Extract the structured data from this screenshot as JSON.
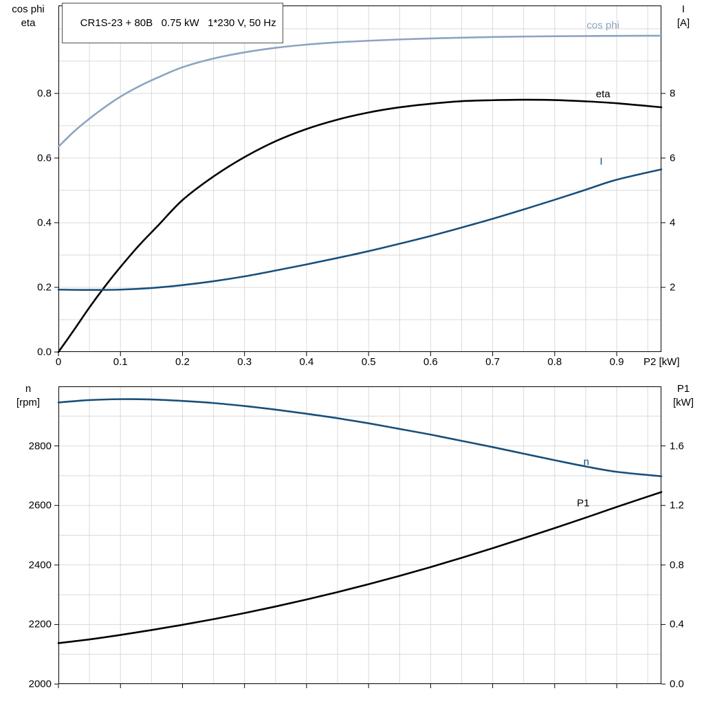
{
  "header": {
    "title": "CR1S-23 + 80B   0.75 kW   1*230 V, 50 Hz"
  },
  "colors": {
    "dark_blue": "#174f7c",
    "light_blue": "#8ba4c0",
    "black": "#000000",
    "grid": "#d9d9d9"
  },
  "chart_data": [
    {
      "type": "line",
      "title": "CR1S-23 + 80B   0.75 kW   1*230 V, 50 Hz",
      "xlabel": "P2 [kW]",
      "xlim": [
        0,
        0.972
      ],
      "x_ticks": [
        "0",
        "0.1",
        "0.2",
        "0.3",
        "0.4",
        "0.5",
        "0.6",
        "0.7",
        "0.8",
        "0.9"
      ],
      "show_x_tick_labels": true,
      "grid": {
        "x_step": 0.05,
        "y_step": 0.1,
        "color": "#d9d9d9"
      },
      "left_axis": {
        "label_lines": [
          "cos phi",
          "eta"
        ],
        "lim": [
          0,
          1.072
        ],
        "ticks": [
          "0.0",
          "0.2",
          "0.4",
          "0.6",
          "0.8"
        ]
      },
      "right_axis": {
        "label_lines": [
          "I",
          "[A]"
        ],
        "lim": [
          0,
          10.72
        ],
        "ticks": [
          "2",
          "4",
          "6",
          "8"
        ]
      },
      "series": [
        {
          "name": "cos-phi",
          "label": "cos phi",
          "axis": "left",
          "color": "#8ba4c0",
          "label_pos": [
            0.878,
            1.01
          ],
          "points": [
            [
              0,
              0.635
            ],
            [
              0.025,
              0.682
            ],
            [
              0.05,
              0.722
            ],
            [
              0.075,
              0.758
            ],
            [
              0.1,
              0.79
            ],
            [
              0.13,
              0.822
            ],
            [
              0.16,
              0.849
            ],
            [
              0.2,
              0.881
            ],
            [
              0.25,
              0.908
            ],
            [
              0.3,
              0.927
            ],
            [
              0.35,
              0.941
            ],
            [
              0.4,
              0.951
            ],
            [
              0.45,
              0.958
            ],
            [
              0.5,
              0.963
            ],
            [
              0.55,
              0.967
            ],
            [
              0.6,
              0.97
            ],
            [
              0.65,
              0.9725
            ],
            [
              0.7,
              0.9745
            ],
            [
              0.75,
              0.976
            ],
            [
              0.8,
              0.977
            ],
            [
              0.85,
              0.9775
            ],
            [
              0.9,
              0.978
            ],
            [
              0.972,
              0.9785
            ]
          ]
        },
        {
          "name": "eta",
          "label": "eta",
          "axis": "left",
          "color": "#000000",
          "label_pos": [
            0.878,
            0.797
          ],
          "points": [
            [
              0,
              0
            ],
            [
              0.025,
              0.068
            ],
            [
              0.05,
              0.138
            ],
            [
              0.075,
              0.203
            ],
            [
              0.1,
              0.263
            ],
            [
              0.13,
              0.33
            ],
            [
              0.16,
              0.39
            ],
            [
              0.2,
              0.47
            ],
            [
              0.25,
              0.543
            ],
            [
              0.3,
              0.603
            ],
            [
              0.35,
              0.652
            ],
            [
              0.4,
              0.69
            ],
            [
              0.45,
              0.719
            ],
            [
              0.5,
              0.741
            ],
            [
              0.55,
              0.757
            ],
            [
              0.6,
              0.768
            ],
            [
              0.65,
              0.776
            ],
            [
              0.7,
              0.779
            ],
            [
              0.75,
              0.7805
            ],
            [
              0.8,
              0.7795
            ],
            [
              0.85,
              0.7755
            ],
            [
              0.9,
              0.7695
            ],
            [
              0.972,
              0.757
            ]
          ]
        },
        {
          "name": "current",
          "label": "I",
          "axis": "right",
          "color": "#174f7c",
          "label_pos": [
            0.875,
            5.9
          ],
          "points": [
            [
              0,
              1.93
            ],
            [
              0.05,
              1.92
            ],
            [
              0.1,
              1.93
            ],
            [
              0.15,
              1.98
            ],
            [
              0.2,
              2.07
            ],
            [
              0.25,
              2.19
            ],
            [
              0.3,
              2.34
            ],
            [
              0.35,
              2.52
            ],
            [
              0.4,
              2.71
            ],
            [
              0.45,
              2.91
            ],
            [
              0.5,
              3.12
            ],
            [
              0.55,
              3.35
            ],
            [
              0.6,
              3.59
            ],
            [
              0.65,
              3.85
            ],
            [
              0.7,
              4.12
            ],
            [
              0.75,
              4.41
            ],
            [
              0.8,
              4.71
            ],
            [
              0.85,
              5.02
            ],
            [
              0.9,
              5.33
            ],
            [
              0.972,
              5.65
            ]
          ]
        }
      ]
    },
    {
      "type": "line",
      "title": "",
      "xlabel": "",
      "xlim": [
        0,
        0.972
      ],
      "x_ticks": [
        "0",
        "0.1",
        "0.2",
        "0.3",
        "0.4",
        "0.5",
        "0.6",
        "0.7",
        "0.8",
        "0.9"
      ],
      "show_x_tick_labels": false,
      "grid": {
        "x_step": 0.05,
        "y_step": 100,
        "color": "#d9d9d9"
      },
      "left_axis": {
        "label_lines": [
          "n",
          "[rpm]"
        ],
        "lim": [
          2000,
          3000
        ],
        "ticks": [
          "2000",
          "2200",
          "2400",
          "2600",
          "2800"
        ]
      },
      "right_axis": {
        "label_lines": [
          "P1",
          "[kW]"
        ],
        "lim": [
          0,
          2.0
        ],
        "ticks": [
          "0.0",
          "0.4",
          "0.8",
          "1.2",
          "1.6"
        ]
      },
      "series": [
        {
          "name": "speed",
          "label": "n",
          "axis": "left",
          "color": "#174f7c",
          "label_pos": [
            0.851,
            2746
          ],
          "points": [
            [
              0,
              2946
            ],
            [
              0.05,
              2954
            ],
            [
              0.1,
              2957
            ],
            [
              0.15,
              2956
            ],
            [
              0.2,
              2951
            ],
            [
              0.25,
              2944
            ],
            [
              0.3,
              2934
            ],
            [
              0.35,
              2922
            ],
            [
              0.4,
              2908
            ],
            [
              0.45,
              2893
            ],
            [
              0.5,
              2876
            ],
            [
              0.55,
              2857
            ],
            [
              0.6,
              2838
            ],
            [
              0.65,
              2817
            ],
            [
              0.7,
              2796
            ],
            [
              0.75,
              2774
            ],
            [
              0.8,
              2752
            ],
            [
              0.85,
              2731
            ],
            [
              0.9,
              2713
            ],
            [
              0.972,
              2698
            ]
          ]
        },
        {
          "name": "power-p1",
          "label": "P1",
          "axis": "right",
          "color": "#000000",
          "label_pos": [
            0.846,
            1.215
          ],
          "points": [
            [
              0,
              0.275
            ],
            [
              0.05,
              0.3
            ],
            [
              0.1,
              0.33
            ],
            [
              0.15,
              0.363
            ],
            [
              0.2,
              0.398
            ],
            [
              0.25,
              0.436
            ],
            [
              0.3,
              0.477
            ],
            [
              0.35,
              0.521
            ],
            [
              0.4,
              0.568
            ],
            [
              0.45,
              0.618
            ],
            [
              0.5,
              0.671
            ],
            [
              0.55,
              0.727
            ],
            [
              0.6,
              0.786
            ],
            [
              0.65,
              0.848
            ],
            [
              0.7,
              0.913
            ],
            [
              0.75,
              0.98
            ],
            [
              0.8,
              1.048
            ],
            [
              0.85,
              1.118
            ],
            [
              0.9,
              1.19
            ],
            [
              0.972,
              1.29
            ]
          ]
        }
      ]
    }
  ]
}
